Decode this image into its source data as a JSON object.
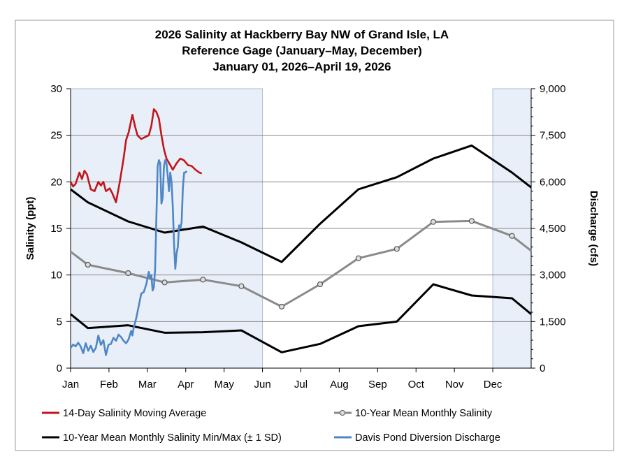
{
  "chart_data": {
    "type": "line",
    "title": [
      "2026 Salinity at Hackberry Bay NW of Grand Isle, LA",
      "Reference Gage (January–May, December)",
      "January 01, 2026–April 19, 2026"
    ],
    "ylabel": "Salinity (ppt)",
    "y2label": "Discharge (cfs)",
    "ylim": [
      0,
      30
    ],
    "y2lim": [
      0,
      9000
    ],
    "yticks": [
      "0",
      "5",
      "10",
      "15",
      "20",
      "25",
      "30"
    ],
    "y2ticks": [
      "0",
      "1,500",
      "3,000",
      "4,500",
      "6,000",
      "7,500",
      "9,000"
    ],
    "xticks": [
      "Jan",
      "Feb",
      "Mar",
      "Apr",
      "May",
      "Jun",
      "Jul",
      "Aug",
      "Sep",
      "Oct",
      "Nov",
      "Dec"
    ],
    "shaded_months": [
      [
        0,
        5
      ],
      [
        11,
        12
      ]
    ],
    "series": [
      {
        "name": "14-Day Salinity Moving Average",
        "color": "#c0161c",
        "axis": "left",
        "x_unit": "day",
        "points": [
          [
            0,
            20
          ],
          [
            2,
            19.5
          ],
          [
            4,
            19.8
          ],
          [
            7,
            21
          ],
          [
            9,
            20.3
          ],
          [
            11,
            21.2
          ],
          [
            13,
            20.8
          ],
          [
            16,
            19.2
          ],
          [
            19,
            19
          ],
          [
            22,
            20
          ],
          [
            24,
            19.6
          ],
          [
            26,
            20
          ],
          [
            28,
            19
          ],
          [
            31,
            19.3
          ],
          [
            33,
            18.8
          ],
          [
            36,
            17.8
          ],
          [
            39,
            20
          ],
          [
            42,
            22.5
          ],
          [
            44,
            24.5
          ],
          [
            46,
            25.3
          ],
          [
            49,
            27.2
          ],
          [
            51,
            26
          ],
          [
            53,
            25
          ],
          [
            56,
            24.6
          ],
          [
            59,
            24.8
          ],
          [
            62,
            25
          ],
          [
            64,
            26
          ],
          [
            66,
            27.8
          ],
          [
            68,
            27.5
          ],
          [
            70,
            26.8
          ],
          [
            72,
            25
          ],
          [
            74,
            23.5
          ],
          [
            76,
            22.5
          ],
          [
            79,
            21.8
          ],
          [
            81,
            21.3
          ],
          [
            84,
            22
          ],
          [
            87,
            22.5
          ],
          [
            90,
            22.3
          ],
          [
            93,
            21.8
          ],
          [
            96,
            21.7
          ],
          [
            99,
            21.3
          ],
          [
            102,
            21
          ],
          [
            104,
            20.9
          ]
        ]
      },
      {
        "name": "10-Year Mean Monthly Salinity",
        "color": "#8a8a8a",
        "axis": "left",
        "x_unit": "month",
        "markers": true,
        "points": [
          [
            0,
            12.5
          ],
          [
            0.45,
            11.1
          ],
          [
            1.5,
            10.2
          ],
          [
            2.45,
            9.2
          ],
          [
            3.45,
            9.5
          ],
          [
            4.45,
            8.8
          ],
          [
            5.5,
            6.6
          ],
          [
            6.5,
            9.0
          ],
          [
            7.5,
            11.8
          ],
          [
            8.5,
            12.8
          ],
          [
            9.45,
            15.7
          ],
          [
            10.45,
            15.8
          ],
          [
            11.5,
            14.2
          ],
          [
            12,
            12.6
          ]
        ]
      },
      {
        "name": "10-Year Mean Monthly Salinity Min/Max (± 1 SD)",
        "color": "#000000",
        "axis": "left",
        "x_unit": "month",
        "points": [
          [
            0,
            19.2
          ],
          [
            0.45,
            17.8
          ],
          [
            1.5,
            15.75
          ],
          [
            2.45,
            14.55
          ],
          [
            3.45,
            15.2
          ],
          [
            4.45,
            13.5
          ],
          [
            5.5,
            11.4
          ],
          [
            6.5,
            15.5
          ],
          [
            7.5,
            19.2
          ],
          [
            8.5,
            20.5
          ],
          [
            9.45,
            22.5
          ],
          [
            10.45,
            23.9
          ],
          [
            11.5,
            21.0
          ],
          [
            12,
            19.4
          ]
        ]
      },
      {
        "name": "min",
        "color": "#000000",
        "axis": "left",
        "x_unit": "month",
        "legend": false,
        "points": [
          [
            0,
            5.8
          ],
          [
            0.45,
            4.3
          ],
          [
            1.5,
            4.6
          ],
          [
            2.45,
            3.8
          ],
          [
            3.45,
            3.85
          ],
          [
            4.45,
            4.05
          ],
          [
            5.5,
            1.7
          ],
          [
            6.5,
            2.6
          ],
          [
            7.5,
            4.5
          ],
          [
            8.5,
            5.0
          ],
          [
            9.45,
            9.0
          ],
          [
            10.45,
            7.8
          ],
          [
            11.5,
            7.5
          ],
          [
            12,
            5.8
          ]
        ]
      },
      {
        "name": "Davis Pond Diversion Discharge",
        "color": "#4f86c6",
        "axis": "right",
        "x_unit": "day",
        "points": [
          [
            0,
            650
          ],
          [
            2,
            760
          ],
          [
            4,
            700
          ],
          [
            6,
            820
          ],
          [
            8,
            700
          ],
          [
            10,
            480
          ],
          [
            12,
            800
          ],
          [
            14,
            560
          ],
          [
            16,
            720
          ],
          [
            18,
            520
          ],
          [
            20,
            650
          ],
          [
            22,
            1050
          ],
          [
            24,
            750
          ],
          [
            26,
            900
          ],
          [
            28,
            420
          ],
          [
            30,
            750
          ],
          [
            32,
            780
          ],
          [
            34,
            980
          ],
          [
            36,
            880
          ],
          [
            38,
            1080
          ],
          [
            40,
            1000
          ],
          [
            42,
            880
          ],
          [
            44,
            800
          ],
          [
            46,
            930
          ],
          [
            48,
            1200
          ],
          [
            49,
            1050
          ],
          [
            50,
            1300
          ],
          [
            52,
            1600
          ],
          [
            54,
            2000
          ],
          [
            56,
            2400
          ],
          [
            58,
            2450
          ],
          [
            60,
            2700
          ],
          [
            62,
            3100
          ],
          [
            63,
            2900
          ],
          [
            64,
            3000
          ],
          [
            65,
            2500
          ],
          [
            66,
            2600
          ],
          [
            67,
            3200
          ],
          [
            69,
            6500
          ],
          [
            70,
            6700
          ],
          [
            71,
            6600
          ],
          [
            72,
            5300
          ],
          [
            73,
            5500
          ],
          [
            74,
            6500
          ],
          [
            75,
            6700
          ],
          [
            76,
            6600
          ],
          [
            77,
            6200
          ],
          [
            78,
            5700
          ],
          [
            79,
            6300
          ],
          [
            80,
            6000
          ],
          [
            81,
            5200
          ],
          [
            82,
            4000
          ],
          [
            83,
            3200
          ],
          [
            84,
            3700
          ],
          [
            85,
            3900
          ],
          [
            86,
            4600
          ],
          [
            87,
            4500
          ],
          [
            88,
            4700
          ],
          [
            89,
            5800
          ],
          [
            90,
            6300
          ],
          [
            91,
            6300
          ],
          [
            92,
            6350
          ]
        ]
      }
    ]
  },
  "legend": {
    "item1": "14-Day Salinity Moving Average",
    "item2": "10-Year Mean Monthly Salinity",
    "item3": "10-Year Mean Monthly Salinity Min/Max (± 1 SD)",
    "item4": "Davis Pond Diversion Discharge"
  }
}
